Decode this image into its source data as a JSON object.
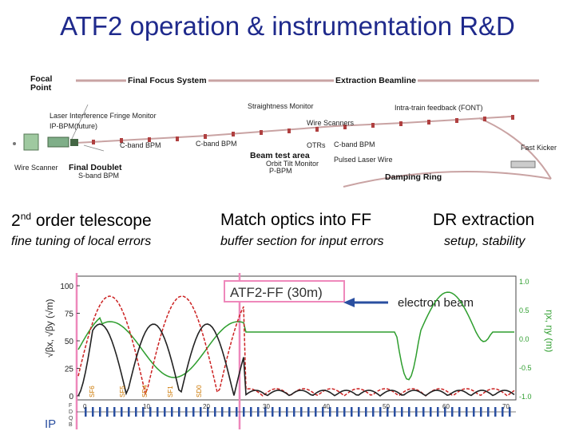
{
  "title": "ATF2 operation & instrumentation R&D",
  "beamline": {
    "focal_point_label": "Focal\nPoint",
    "final_focus_label": "Final Focus System",
    "extraction_label": "Extraction Beamline",
    "labels": {
      "laser_interference": "Laser Interference Fringe Monitor",
      "ip_bpm": "IP-BPM(future)",
      "wire_scanner_left": "Wire Scanner",
      "final_doublet": "Final Doublet",
      "s_band_bpm": "S-band BPM",
      "c_band_bpm_1": "C-band BPM",
      "c_band_bpm_2": "C-band BPM",
      "c_band_bpm_3": "C-band BPM",
      "straightness_monitor": "Straightness Monitor",
      "wire_scanners": "Wire Scanners",
      "beam_test_area": "Beam test area",
      "orbit_tilt_monitor": "Orbit Tilt Monitor",
      "p_bpm": "P-BPM",
      "otrs": "OTRs",
      "pulsed_laser_wire": "Pulsed Laser Wire",
      "intra_train_feedback": "Intra-train feedback (FONT)",
      "fast_kicker": "Fast Kicker",
      "damping_ring": "Damping Ring"
    }
  },
  "captions": [
    {
      "head_main": "2",
      "head_sup": "nd",
      "head_rest": " order telescope",
      "sub": "fine tuning of local errors"
    },
    {
      "head_main": "Match optics into FF",
      "head_sup": "",
      "head_rest": "",
      "sub": "buffer section for input errors"
    },
    {
      "head_main": "DR extraction",
      "head_sup": "",
      "head_rest": "",
      "sub": "setup, stability"
    }
  ],
  "optics_plot": {
    "banner": "ATF2-FF (30m)",
    "arrow_label": "electron beam",
    "left_axis_label": "√βx, √βy (√m)",
    "right_axis_label": "ηx, ηy (m)",
    "left_ticks": [
      "100",
      "75",
      "50",
      "25",
      "0"
    ],
    "right_ticks": [
      "1.0",
      "0.5",
      "0.0",
      "-0.5",
      "-1.0"
    ],
    "x_ticks": [
      "0",
      "10",
      "20",
      "30",
      "40",
      "50",
      "60",
      "70"
    ],
    "ip_label": "IP",
    "sextupole_labels": [
      "SF6",
      "SF5",
      "SD4",
      "SF1",
      "SD0"
    ],
    "element_rows": [
      "F",
      "D",
      "Q",
      "B"
    ],
    "series": [
      {
        "color": "#222222",
        "style": "solid"
      },
      {
        "color": "#cc2222",
        "style": "dashed"
      },
      {
        "color": "#2e9e2e",
        "style": "solid"
      }
    ]
  },
  "colors": {
    "title": "#1f2a8c",
    "beamline": "#c9a3a3",
    "banner_box": "#ee88bb",
    "arrow": "#2a4fa0",
    "beta_x": "#222222",
    "beta_y": "#cc2222",
    "eta": "#2e9e2e"
  }
}
